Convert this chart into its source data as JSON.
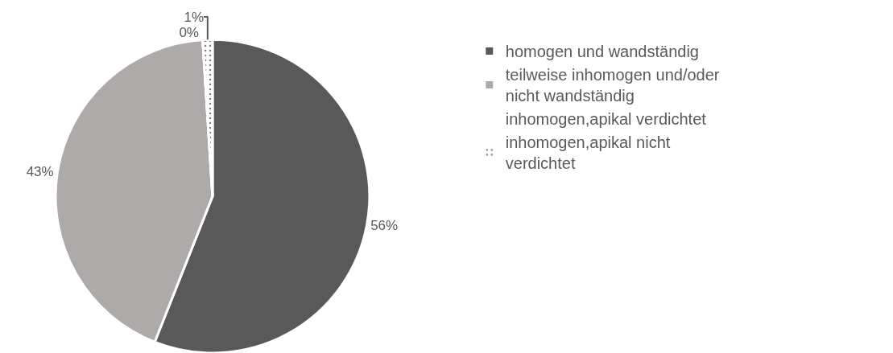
{
  "chart_data": {
    "type": "pie",
    "categories": [
      "homogen und wandständig",
      "teilweise inhomogen und/oder nicht wandständig",
      "inhomogen,apikal verdichtet",
      "inhomogen,apikal nicht verdichtet"
    ],
    "values": [
      56,
      43,
      0,
      1
    ],
    "colors": [
      "#595959",
      "#aeaaaa",
      "#ffffff",
      "#f4f4f4"
    ],
    "value_labels": [
      "56%",
      "43%",
      "0%",
      "1%"
    ],
    "legend": "right"
  }
}
